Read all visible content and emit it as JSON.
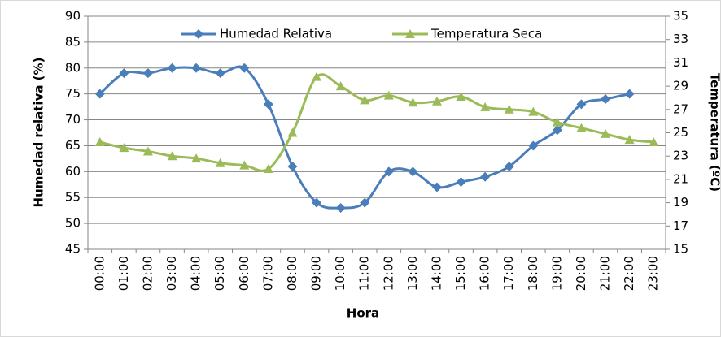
{
  "chart_data": {
    "type": "line",
    "x_label": "Hora",
    "y_label": "Humedad relativa (%)",
    "y2_label": "Temperatura (ºC)",
    "categories": [
      "00:00",
      "01:00",
      "02:00",
      "03:00",
      "04:00",
      "05:00",
      "06:00",
      "07:00",
      "08:00",
      "09:00",
      "10:00",
      "11:00",
      "12:00",
      "13:00",
      "14:00",
      "15:00",
      "16:00",
      "17:00",
      "18:00",
      "19:00",
      "20:00",
      "21:00",
      "22:00",
      "23:00"
    ],
    "series": [
      {
        "name": "Humedad Relativa",
        "color": "#4a7ebb",
        "marker": "diamond",
        "values": [
          75,
          79,
          79,
          80,
          80,
          79,
          80,
          73,
          61,
          54,
          53,
          54,
          60,
          60,
          57,
          58,
          59,
          61,
          65,
          68,
          73,
          74,
          75,
          null
        ]
      },
      {
        "name": "Temperatura Seca",
        "color": "#9bbb59",
        "marker": "triangle",
        "axis": "y2",
        "values": [
          24.2,
          23.7,
          23.4,
          23.0,
          22.8,
          22.4,
          22.2,
          21.9,
          25.0,
          29.8,
          29.0,
          27.8,
          28.2,
          27.6,
          27.7,
          28.1,
          27.2,
          27.0,
          26.8,
          25.9,
          25.4,
          24.9,
          24.4,
          24.2
        ]
      }
    ],
    "ylim": [
      45,
      90
    ],
    "yticks": [
      45,
      50,
      55,
      60,
      65,
      70,
      75,
      80,
      85,
      90
    ],
    "y2lim": [
      15,
      35
    ],
    "y2ticks": [
      15,
      17,
      19,
      21,
      23,
      25,
      27,
      29,
      31,
      33,
      35
    ],
    "grid": true,
    "legend": "top"
  }
}
